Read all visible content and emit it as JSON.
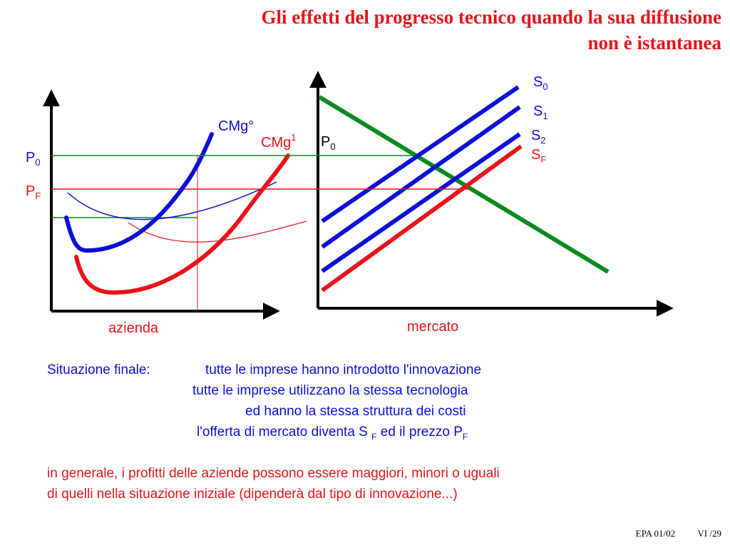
{
  "title": {
    "line1": "Gli effetti del progresso tecnico quando la sua diffusione",
    "line2": "non è istantanea"
  },
  "firm_panel": {
    "label": "azienda",
    "p0_main": "P",
    "p0_sub": "0",
    "pf_main": "P",
    "pf_sub": "F",
    "cmg0": "CMg°",
    "cmg1_main": "CMg",
    "cmg1_sup": "1"
  },
  "market_panel": {
    "label": "mercato",
    "p0_main": "P",
    "p0_sub": "0",
    "supply_curves": [
      {
        "main": "S",
        "sub": "0",
        "color": "#0b10d8"
      },
      {
        "main": "S",
        "sub": "1",
        "color": "#0b10d8"
      },
      {
        "main": "S",
        "sub": "2",
        "color": "#0b10d8"
      },
      {
        "main": "S",
        "sub": "F",
        "color": "#e8141a"
      }
    ],
    "demand_color": "#0a8a1e"
  },
  "colors": {
    "blue": "#0b10d8",
    "red": "#e8141a",
    "green": "#0a8a1e",
    "black": "#000000"
  },
  "text": {
    "intro_label": "Situazione finale:",
    "line1": "tutte le imprese hanno introdotto l'innovazione",
    "line2": "tutte le imprese utilizzano la stessa tecnologia",
    "line3": "ed hanno la stessa struttura dei costi",
    "line4_a": "l'offerta di mercato diventa S",
    "line4_sub1": "F",
    "line4_b": "ed il prezzo P",
    "line4_sub2": "F",
    "general1": "in generale, i profitti delle aziende possono essere maggiori, minori o uguali",
    "general2": "di quelli nella situazione iniziale (dipenderà dal tipo di innovazione...)"
  },
  "footer": {
    "left": "EPA 01/02",
    "right": "VI /29"
  }
}
